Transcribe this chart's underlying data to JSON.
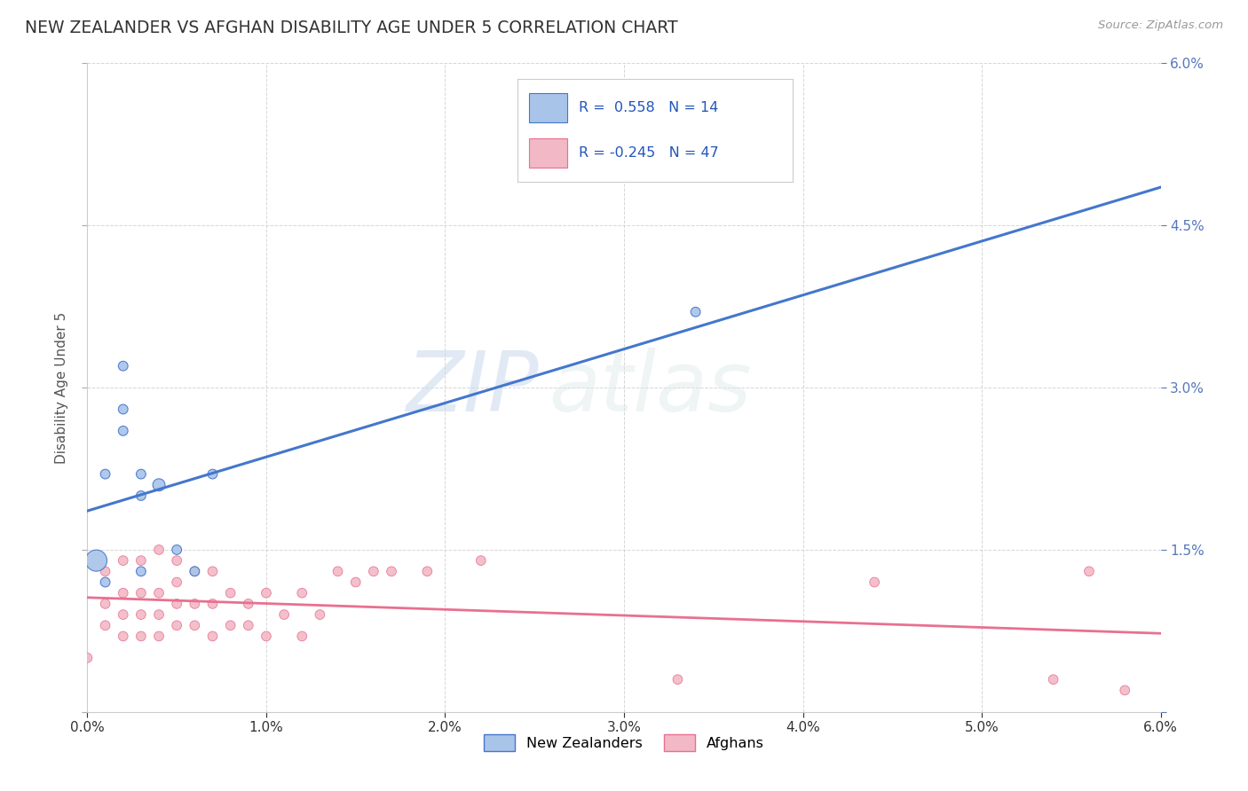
{
  "title": "NEW ZEALANDER VS AFGHAN DISABILITY AGE UNDER 5 CORRELATION CHART",
  "source": "Source: ZipAtlas.com",
  "ylabel": "Disability Age Under 5",
  "xlim": [
    0.0,
    0.06
  ],
  "ylim": [
    0.0,
    0.06
  ],
  "x_ticks": [
    0.0,
    0.01,
    0.02,
    0.03,
    0.04,
    0.05,
    0.06
  ],
  "x_tick_labels": [
    "0.0%",
    "1.0%",
    "2.0%",
    "3.0%",
    "4.0%",
    "5.0%",
    "6.0%"
  ],
  "y_ticks_left": [
    0.0,
    0.015,
    0.03,
    0.045,
    0.06
  ],
  "y_tick_labels_left": [
    "",
    "",
    "",
    "",
    ""
  ],
  "y_ticks_right": [
    0.0,
    0.015,
    0.03,
    0.045,
    0.06
  ],
  "y_tick_labels_right": [
    "",
    "1.5%",
    "3.0%",
    "4.5%",
    "6.0%"
  ],
  "legend_r_nz": "0.558",
  "legend_n_nz": "14",
  "legend_r_af": "-0.245",
  "legend_n_af": "47",
  "nz_color": "#a8c4e8",
  "af_color": "#f2b8c6",
  "nz_line_color": "#4477cc",
  "af_line_color": "#e87090",
  "watermark_zip": "ZIP",
  "watermark_atlas": "atlas",
  "nz_scatter_x": [
    0.0005,
    0.001,
    0.001,
    0.002,
    0.002,
    0.002,
    0.003,
    0.003,
    0.003,
    0.004,
    0.005,
    0.006,
    0.007,
    0.034
  ],
  "nz_scatter_y": [
    0.014,
    0.012,
    0.022,
    0.028,
    0.032,
    0.026,
    0.013,
    0.02,
    0.022,
    0.021,
    0.015,
    0.013,
    0.022,
    0.037
  ],
  "nz_scatter_sizes": [
    300,
    60,
    60,
    60,
    60,
    60,
    60,
    60,
    60,
    100,
    60,
    60,
    60,
    60
  ],
  "af_scatter_x": [
    0.0,
    0.001,
    0.001,
    0.001,
    0.002,
    0.002,
    0.002,
    0.002,
    0.003,
    0.003,
    0.003,
    0.003,
    0.004,
    0.004,
    0.004,
    0.004,
    0.005,
    0.005,
    0.005,
    0.005,
    0.006,
    0.006,
    0.006,
    0.007,
    0.007,
    0.007,
    0.008,
    0.008,
    0.009,
    0.009,
    0.01,
    0.01,
    0.011,
    0.012,
    0.012,
    0.013,
    0.014,
    0.015,
    0.016,
    0.017,
    0.019,
    0.022,
    0.033,
    0.044,
    0.054,
    0.056,
    0.058
  ],
  "af_scatter_y": [
    0.005,
    0.008,
    0.01,
    0.013,
    0.007,
    0.009,
    0.011,
    0.014,
    0.007,
    0.009,
    0.011,
    0.014,
    0.007,
    0.009,
    0.011,
    0.015,
    0.008,
    0.01,
    0.012,
    0.014,
    0.008,
    0.01,
    0.013,
    0.007,
    0.01,
    0.013,
    0.008,
    0.011,
    0.008,
    0.01,
    0.007,
    0.011,
    0.009,
    0.007,
    0.011,
    0.009,
    0.013,
    0.012,
    0.013,
    0.013,
    0.013,
    0.014,
    0.003,
    0.012,
    0.003,
    0.013,
    0.002
  ],
  "af_scatter_sizes": [
    60,
    60,
    60,
    60,
    60,
    60,
    60,
    60,
    60,
    60,
    60,
    60,
    60,
    60,
    60,
    60,
    60,
    60,
    60,
    60,
    60,
    60,
    60,
    60,
    60,
    60,
    60,
    60,
    60,
    60,
    60,
    60,
    60,
    60,
    60,
    60,
    60,
    60,
    60,
    60,
    60,
    60,
    60,
    60,
    60,
    60,
    60
  ],
  "background_color": "#ffffff",
  "grid_color": "#cccccc",
  "tick_color": "#5577bb",
  "title_color": "#333333",
  "source_color": "#999999"
}
